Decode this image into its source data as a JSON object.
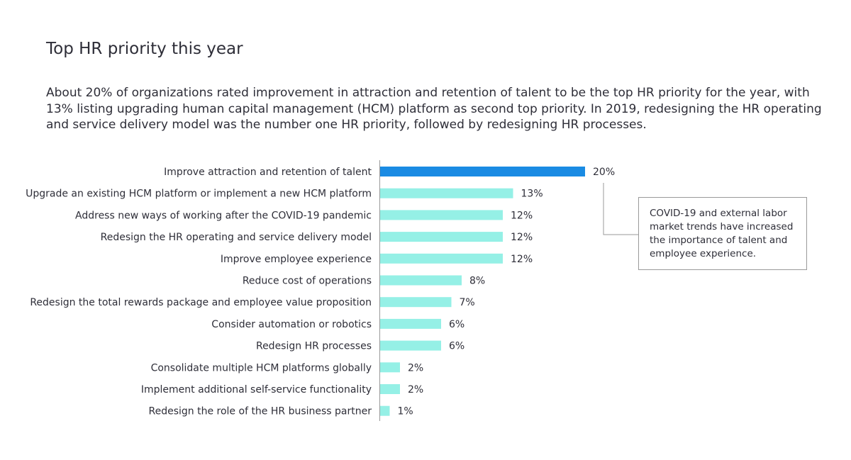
{
  "chart_data": {
    "type": "bar",
    "orientation": "horizontal",
    "title": "Top HR priority this year",
    "subtitle": "About 20% of organizations rated improvement in attraction and retention of talent to be the top HR priority for the year, with 13% listing upgrading human capital management (HCM) platform as second top priority. In 2019, redesigning the HR operating and service delivery model was the number one HR priority, followed by redesigning HR processes.",
    "categories": [
      "Improve attraction and retention of talent",
      "Upgrade an existing HCM platform or implement a new HCM platform",
      "Address new ways of working after the COVID-19 pandemic",
      "Redesign the HR operating and service delivery model",
      "Improve employee experience",
      "Reduce cost of operations",
      "Redesign the total rewards package and employee value proposition",
      "Consider automation or robotics",
      "Redesign HR processes",
      "Consolidate multiple HCM platforms globally",
      "Implement additional self-service functionality",
      "Redesign the role of the HR business partner"
    ],
    "values": [
      20,
      13,
      12,
      12,
      12,
      8,
      7,
      6,
      6,
      2,
      2,
      1
    ],
    "value_labels": [
      "20%",
      "13%",
      "12%",
      "12%",
      "12%",
      "8%",
      "7%",
      "6%",
      "6%",
      "2%",
      "2%",
      "1%"
    ],
    "unit": "%",
    "xlim": [
      0,
      20
    ],
    "grid": false,
    "colors": {
      "highlight": "#1a8be3",
      "default": "#95f0e6",
      "axis": "#999999"
    },
    "highlight_index": 0,
    "annotation": "COVID-19 and external labor market trends have increased the importance of talent and employee experience."
  }
}
